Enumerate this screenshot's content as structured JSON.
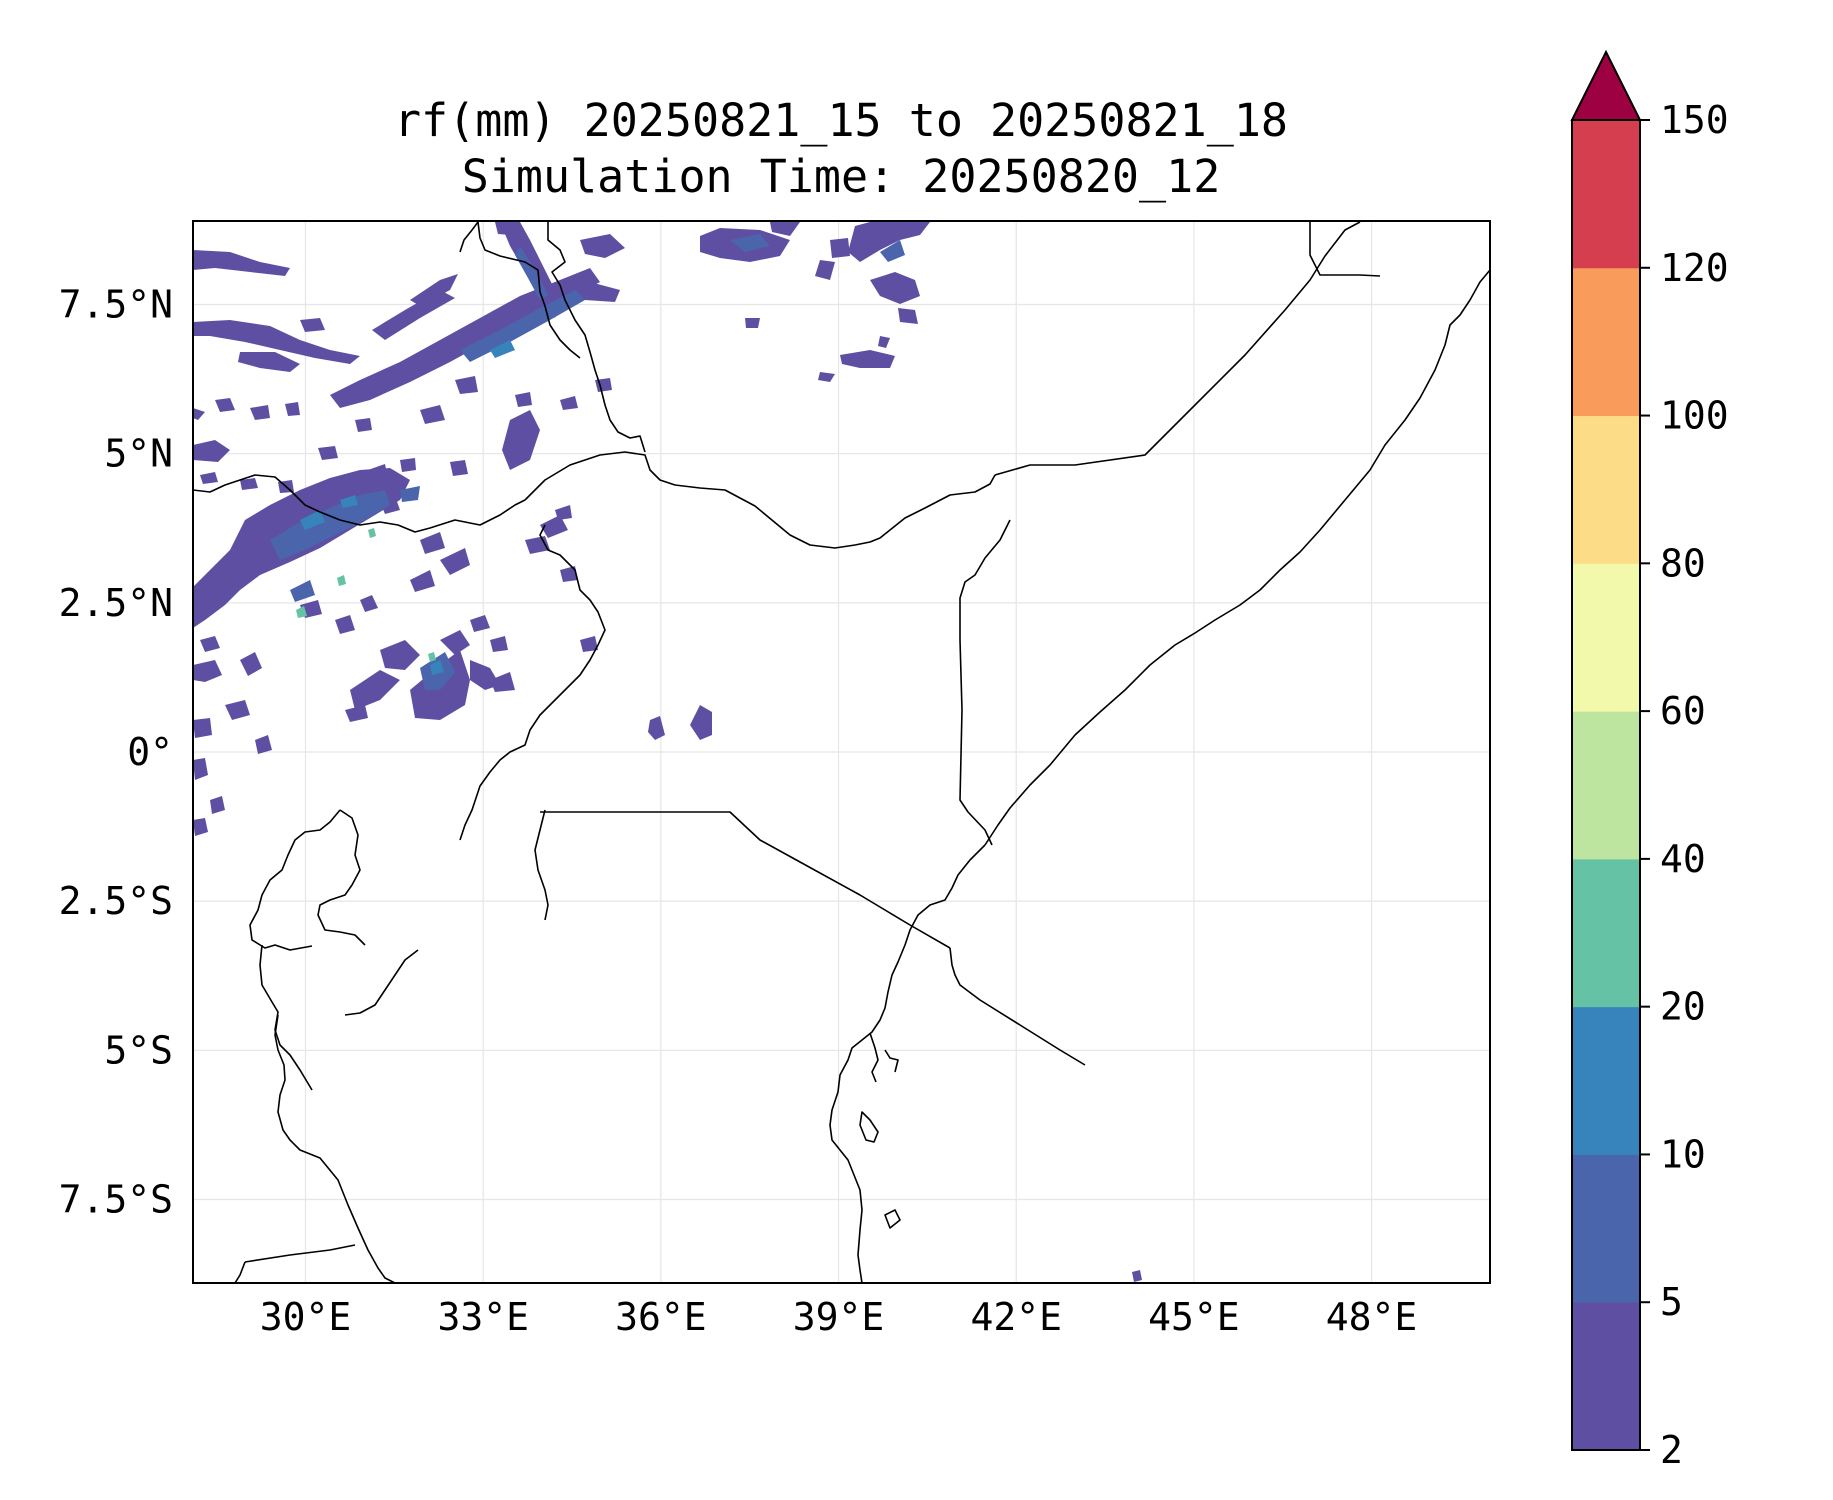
{
  "title": {
    "line1": "rf(mm) 20250821_15 to 20250821_18",
    "line2": "Simulation Time: 20250820_12"
  },
  "map": {
    "lon_range": [
      28.1,
      50.0
    ],
    "lat_range": [
      -8.9,
      8.9
    ],
    "x_ticks": [
      {
        "value": 30,
        "label": "30°E"
      },
      {
        "value": 33,
        "label": "33°E"
      },
      {
        "value": 36,
        "label": "36°E"
      },
      {
        "value": 39,
        "label": "39°E"
      },
      {
        "value": 42,
        "label": "42°E"
      },
      {
        "value": 45,
        "label": "45°E"
      },
      {
        "value": 48,
        "label": "48°E"
      }
    ],
    "y_ticks": [
      {
        "value": 7.5,
        "label": "7.5°N"
      },
      {
        "value": 5,
        "label": "5°N"
      },
      {
        "value": 2.5,
        "label": "2.5°N"
      },
      {
        "value": 0,
        "label": "0°"
      },
      {
        "value": -2.5,
        "label": "2.5°S"
      },
      {
        "value": -5,
        "label": "5°S"
      },
      {
        "value": -7.5,
        "label": "7.5°S"
      }
    ],
    "grid": true
  },
  "colorbar": {
    "extend": "max",
    "extend_color": "#9e0142",
    "levels": [
      "2",
      "5",
      "10",
      "20",
      "40",
      "60",
      "80",
      "100",
      "120",
      "150"
    ],
    "colors": [
      "#5e4fa2",
      "#4b65ad",
      "#3783bb",
      "#65c2a5",
      "#bee5a0",
      "#f2f9aa",
      "#fddc88",
      "#f99b5a",
      "#d53e4f"
    ]
  }
}
